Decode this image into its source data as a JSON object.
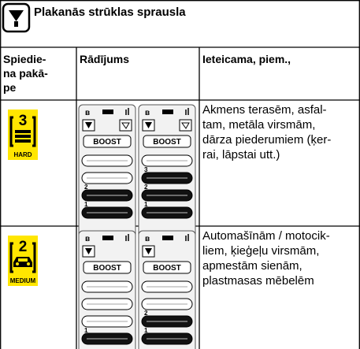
{
  "header": {
    "title": "Plakanās strūklas sprausla"
  },
  "table": {
    "columns": [
      [
        "Spiedie-",
        "na pakā-",
        "pe"
      ],
      "Rādījums",
      "Ieteicama, piem.,"
    ],
    "rows": [
      {
        "level": "3",
        "level_label": "HARD",
        "screens": [
          {
            "button": "BOOST",
            "bars": [
              "2",
              "1"
            ]
          },
          {
            "button": "BOOST",
            "bars": [
              "3",
              "2",
              "1"
            ]
          }
        ],
        "use": [
          "Akmens terasēm, asfal-",
          "tam, metāla virsmām,",
          "dārza piederumiem (ķer-",
          "rai, lāpstai utt.)"
        ]
      },
      {
        "level": "2",
        "level_label": "MEDIUM",
        "screens": [
          {
            "button": "BOOST",
            "bars": [
              "1"
            ]
          },
          {
            "button": "BOOST",
            "bars": [
              "2",
              "1"
            ]
          }
        ],
        "use": [
          "Automašīnām / motocik-",
          "liem, ķieģeļu virsmām,",
          "apmestām sienām,",
          "plastmasas mēbelēm"
        ]
      }
    ]
  }
}
